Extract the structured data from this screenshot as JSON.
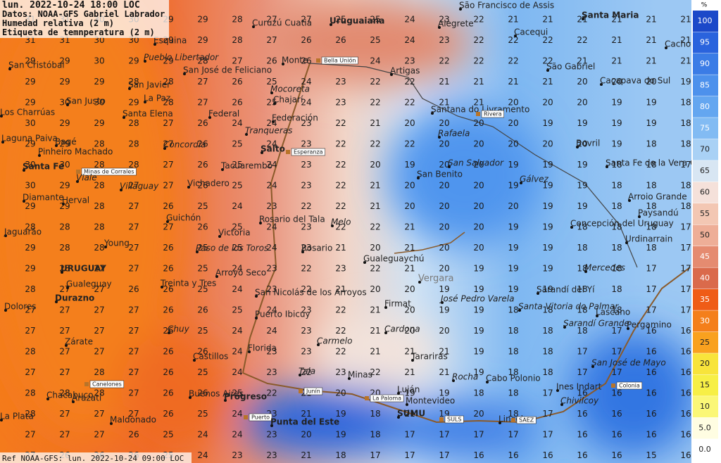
{
  "header": {
    "lines": [
      "lun. 2022-10-24 18:00 LOC",
      "Datos: NOAA-GFS Gabriel Labrador",
      "Humedad relativa (2 m)",
      "Etiqueta de temnperatura (2 m)"
    ]
  },
  "footer": "Ref NOAA-GFS: lun. 2022-10-24 09:00 LOC",
  "legend": {
    "title": "%",
    "levels": [
      100,
      95,
      90,
      85,
      80,
      75,
      70,
      65,
      60,
      55,
      50,
      45,
      40,
      35,
      30,
      25,
      20,
      15,
      10,
      {
        "value": 5,
        "label": "5.0"
      },
      {
        "value": 0,
        "label": "0.0"
      }
    ],
    "colors": [
      "#1c49c9",
      "#2a63dd",
      "#3b7ce6",
      "#4d91ec",
      "#64a6f0",
      "#82bbf3",
      "#a9d1f5",
      "#d8e6f3",
      "#f5e1da",
      "#f3c7b3",
      "#eeae97",
      "#e58b70",
      "#da6a4b",
      "#ef5c17",
      "#f47f1b",
      "#f9a11f",
      "#f8e43b",
      "#f7ef46",
      "#fbf777",
      "#fffde2",
      "#ffffff"
    ]
  },
  "temperatures": [
    [
      31,
      31,
      30,
      30,
      29,
      29,
      28,
      27,
      27,
      25,
      25,
      24,
      23,
      22,
      21,
      21,
      21,
      21,
      21,
      21
    ],
    [
      31,
      31,
      30,
      30,
      29,
      29,
      28,
      27,
      26,
      26,
      25,
      24,
      23,
      22,
      22,
      22,
      22,
      21,
      21,
      21
    ],
    [
      29,
      29,
      30,
      29,
      29,
      28,
      27,
      26,
      26,
      25,
      24,
      23,
      22,
      22,
      22,
      22,
      21,
      21,
      21,
      21
    ],
    [
      29,
      29,
      29,
      28,
      28,
      27,
      26,
      25,
      24,
      23,
      22,
      22,
      21,
      21,
      21,
      21,
      20,
      20,
      20,
      19
    ],
    [
      29,
      30,
      30,
      29,
      28,
      27,
      26,
      25,
      24,
      23,
      22,
      22,
      21,
      21,
      20,
      20,
      20,
      19,
      19,
      18
    ],
    [
      30,
      29,
      29,
      28,
      27,
      26,
      24,
      24,
      23,
      22,
      21,
      20,
      20,
      20,
      20,
      19,
      19,
      19,
      19,
      18
    ],
    [
      29,
      29,
      28,
      28,
      27,
      26,
      25,
      24,
      23,
      22,
      22,
      22,
      20,
      20,
      20,
      20,
      20,
      19,
      18,
      18
    ],
    [
      30,
      30,
      28,
      28,
      27,
      26,
      25,
      24,
      23,
      22,
      20,
      19,
      20,
      20,
      19,
      19,
      19,
      18,
      18,
      17
    ],
    [
      30,
      29,
      28,
      27,
      27,
      26,
      25,
      24,
      23,
      22,
      21,
      20,
      20,
      20,
      19,
      19,
      19,
      18,
      18,
      18
    ],
    [
      29,
      29,
      28,
      27,
      26,
      25,
      24,
      23,
      22,
      22,
      21,
      20,
      20,
      20,
      20,
      19,
      19,
      18,
      18,
      18
    ],
    [
      28,
      28,
      28,
      27,
      27,
      26,
      25,
      24,
      23,
      22,
      22,
      21,
      20,
      20,
      19,
      19,
      18,
      18,
      18,
      17
    ],
    [
      29,
      28,
      28,
      27,
      26,
      25,
      25,
      24,
      23,
      21,
      20,
      21,
      20,
      20,
      19,
      19,
      18,
      18,
      18,
      17
    ],
    [
      29,
      28,
      27,
      27,
      26,
      25,
      24,
      23,
      22,
      23,
      22,
      21,
      20,
      19,
      19,
      19,
      18,
      18,
      17,
      17
    ],
    [
      28,
      27,
      27,
      26,
      26,
      25,
      24,
      23,
      22,
      21,
      20,
      20,
      19,
      19,
      19,
      19,
      18,
      18,
      17,
      17
    ],
    [
      27,
      27,
      27,
      27,
      26,
      26,
      25,
      24,
      23,
      22,
      21,
      20,
      19,
      19,
      18,
      18,
      18,
      18,
      17,
      17
    ],
    [
      27,
      27,
      27,
      27,
      26,
      25,
      24,
      24,
      23,
      22,
      21,
      20,
      20,
      19,
      18,
      18,
      18,
      17,
      16,
      16
    ],
    [
      28,
      27,
      27,
      27,
      26,
      26,
      24,
      23,
      23,
      22,
      21,
      21,
      21,
      19,
      18,
      18,
      17,
      17,
      16,
      16
    ],
    [
      27,
      27,
      28,
      27,
      26,
      25,
      24,
      23,
      22,
      23,
      22,
      21,
      21,
      19,
      18,
      18,
      17,
      17,
      16,
      16
    ],
    [
      28,
      28,
      28,
      27,
      26,
      26,
      25,
      22,
      21,
      20,
      20,
      19,
      19,
      18,
      18,
      17,
      16,
      16,
      16,
      16
    ],
    [
      28,
      27,
      27,
      27,
      26,
      25,
      24,
      23,
      21,
      19,
      18,
      21,
      19,
      20,
      18,
      17,
      16,
      16,
      16,
      16
    ],
    [
      27,
      27,
      27,
      26,
      25,
      24,
      24,
      23,
      20,
      19,
      18,
      17,
      17,
      17,
      17,
      17,
      16,
      16,
      16,
      16
    ],
    [
      27,
      26,
      26,
      26,
      25,
      24,
      23,
      23,
      21,
      18,
      17,
      17,
      17,
      16,
      16,
      16,
      16,
      16,
      15,
      16
    ]
  ],
  "places": [
    "São Francisco de Assis",
    "Santa Maria",
    "Curuzú Cuatiá",
    "Uruguaiana",
    "Alegrete",
    "Cacequi",
    "Cachoeira do Sul",
    "Esquina",
    "Pueblo Libertador",
    "Monte",
    "Bella Unión",
    "San Cristóbal",
    "San José de Feliciano",
    "São Gabriel",
    "Caçapava do Sul",
    "Artigas",
    "San Javier",
    "Mocoreta",
    "La Paz",
    "San Justo",
    "Chajarí",
    "Federal",
    "Santana do Livramento",
    "Rivera",
    "Santa Elena",
    "Federación",
    "Los Charrúas",
    "Tranqueras",
    "Rafaela",
    "Laguna Paiva",
    "Bagé",
    "Bovril",
    "Concordia",
    "Salto",
    "Esperanza",
    "Pinheiro Machado",
    "Santa Fe de la Vera Cruz",
    "Santa Fe",
    "Minas de Corrales",
    "San Salvador",
    "Tacuarembó",
    "San Benito",
    "Viale",
    "Villaguay",
    "Vichadero",
    "Gálvez",
    "Diamante",
    "Herval",
    "Arroio Grande",
    "Paysandú",
    "Rosario del Tala",
    "Guichón",
    "Melo",
    "Concepción del Uruguay",
    "Jaguarão",
    "Victoria",
    "Urdinarrain",
    "Young",
    "Paso de los Toros",
    "Rosario",
    "Gualeguaychú",
    "URUGUAY",
    "Arroyo Seco",
    "Vergara",
    "Gualeguay",
    "Mercedes",
    "Treinta y Tres",
    "San Nicolás de los Arroyos",
    "Sarandí del Yí",
    "Durazno",
    "José Pedro Varela",
    "Firmat",
    "Santa Vitoria do Palmar",
    "Dolores",
    "Lascano",
    "Puerto Ibicuy",
    "Sarandí Grande",
    "Chuy",
    "Cardona",
    "Pergamino",
    "Carmelo",
    "Zárate",
    "Florida",
    "Castillos",
    "Tarariras",
    "San José de Mayo",
    "Tala",
    "Minas",
    "Rocha",
    "Cabo Polonio",
    "Ines Indart",
    "Colonia",
    "Canelones",
    "Junín",
    "Luján",
    "Chacabuco",
    "Buenos Aires",
    "Arazatí",
    "Progreso",
    "La Paloma",
    "Montevideo",
    "Chivilcoy",
    "SUMU",
    "Maldonado",
    "SULS",
    "Lincoln",
    "SAEZ",
    "La Plata",
    "Puerto",
    "Punta del Este"
  ]
}
